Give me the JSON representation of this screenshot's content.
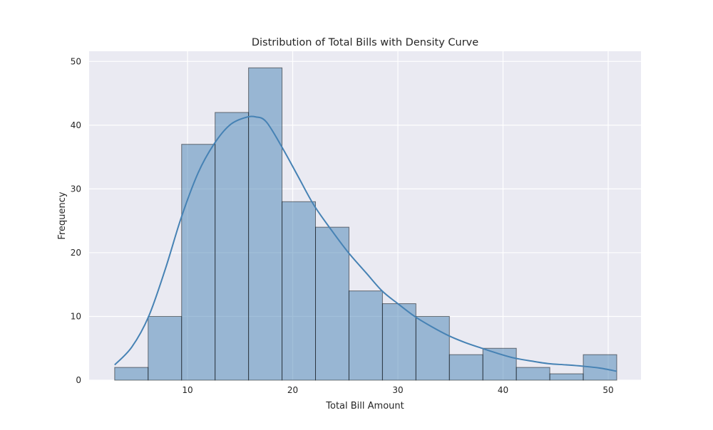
{
  "chart_data": {
    "type": "bar",
    "title": "Distribution of Total Bills with Density Curve",
    "xlabel": "Total Bill Amount",
    "ylabel": "Frequency",
    "xlim": [
      0.64,
      53.12
    ],
    "ylim": [
      0,
      51.6
    ],
    "xticks": [
      10,
      20,
      30,
      40,
      50
    ],
    "yticks": [
      0,
      10,
      20,
      30,
      40,
      50
    ],
    "grid": true,
    "bin_start": 3.07,
    "bin_width": 3.183,
    "values": [
      2,
      10,
      37,
      42,
      49,
      28,
      24,
      14,
      12,
      10,
      4,
      5,
      2,
      1,
      4
    ],
    "density_curve": {
      "x": [
        3.07,
        4.7,
        6.3,
        7.9,
        9.4,
        11,
        12.5,
        14,
        15.5,
        16.5,
        17.5,
        19,
        20.5,
        22,
        23.7,
        25.3,
        27,
        28.5,
        30,
        31.6,
        33.2,
        34.8,
        36.4,
        38,
        39.5,
        41,
        42.7,
        44.3,
        46,
        47.5,
        49.2,
        50.81
      ],
      "y": [
        2.4,
        5.2,
        10,
        17.5,
        25.5,
        32.5,
        37,
        40,
        41.2,
        41.3,
        40.5,
        36.5,
        32,
        27.5,
        23.5,
        20,
        16.8,
        14,
        12,
        10,
        8.4,
        7,
        5.9,
        5,
        4.2,
        3.5,
        3,
        2.6,
        2.4,
        2.2,
        1.9,
        1.4
      ]
    },
    "colors": {
      "background": "#eaeaf2",
      "bar_fill": "#4682b4",
      "bar_edge": "#000000",
      "curve": "#4682b4",
      "grid": "#ffffff"
    }
  }
}
